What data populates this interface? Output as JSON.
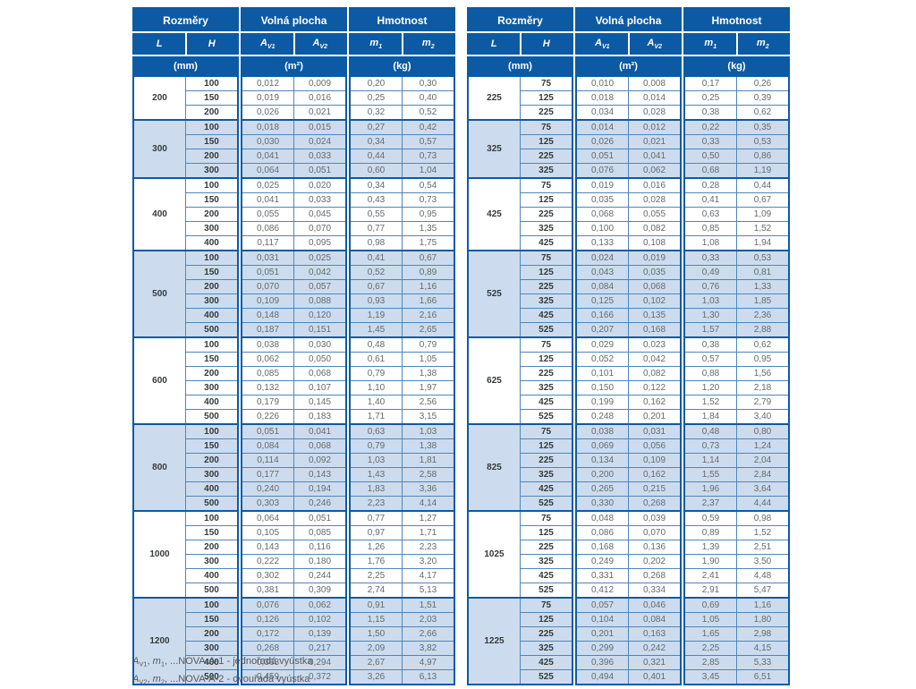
{
  "colors": {
    "header_blue": "#0d5aa4",
    "shaded_row_blue": "#ccdcee",
    "row_line_blue": "#4e86bb",
    "value_text_gray": "#66696c",
    "bold_text_dark": "#36393c"
  },
  "header": {
    "groups": [
      {
        "title": "Rozměry",
        "unit": "(mm)",
        "cols": [
          {
            "base": "L",
            "sub": ""
          },
          {
            "base": "H",
            "sub": ""
          }
        ]
      },
      {
        "title": "Volná plocha",
        "unit": "(m²)",
        "cols": [
          {
            "base": "A",
            "sub": "V1"
          },
          {
            "base": "A",
            "sub": "V2"
          }
        ]
      },
      {
        "title": "Hmotnost",
        "unit": "(kg)",
        "cols": [
          {
            "base": "m",
            "sub": "1"
          },
          {
            "base": "m",
            "sub": "2"
          }
        ]
      }
    ]
  },
  "tables": [
    {
      "name": "left",
      "groups": [
        {
          "L": "200",
          "rows": [
            [
              "100",
              "0,012",
              "0,009",
              "0,20",
              "0,30"
            ],
            [
              "150",
              "0,019",
              "0,016",
              "0,25",
              "0,40"
            ],
            [
              "200",
              "0,026",
              "0,021",
              "0,32",
              "0,52"
            ]
          ]
        },
        {
          "L": "300",
          "rows": [
            [
              "100",
              "0,018",
              "0,015",
              "0,27",
              "0,42"
            ],
            [
              "150",
              "0,030",
              "0,024",
              "0,34",
              "0,57"
            ],
            [
              "200",
              "0,041",
              "0,033",
              "0,44",
              "0,73"
            ],
            [
              "300",
              "0,064",
              "0,051",
              "0,60",
              "1,04"
            ]
          ]
        },
        {
          "L": "400",
          "rows": [
            [
              "100",
              "0,025",
              "0,020",
              "0,34",
              "0,54"
            ],
            [
              "150",
              "0,041",
              "0,033",
              "0,43",
              "0,73"
            ],
            [
              "200",
              "0,055",
              "0,045",
              "0,55",
              "0,95"
            ],
            [
              "300",
              "0,086",
              "0,070",
              "0,77",
              "1,35"
            ],
            [
              "400",
              "0,117",
              "0,095",
              "0,98",
              "1,75"
            ]
          ]
        },
        {
          "L": "500",
          "rows": [
            [
              "100",
              "0,031",
              "0,025",
              "0,41",
              "0,67"
            ],
            [
              "150",
              "0,051",
              "0,042",
              "0,52",
              "0,89"
            ],
            [
              "200",
              "0,070",
              "0,057",
              "0,67",
              "1,16"
            ],
            [
              "300",
              "0,109",
              "0,088",
              "0,93",
              "1,66"
            ],
            [
              "400",
              "0,148",
              "0,120",
              "1,19",
              "2,16"
            ],
            [
              "500",
              "0,187",
              "0,151",
              "1,45",
              "2,65"
            ]
          ]
        },
        {
          "L": "600",
          "rows": [
            [
              "100",
              "0,038",
              "0,030",
              "0,48",
              "0,79"
            ],
            [
              "150",
              "0,062",
              "0,050",
              "0,61",
              "1,05"
            ],
            [
              "200",
              "0,085",
              "0,068",
              "0,79",
              "1,38"
            ],
            [
              "300",
              "0,132",
              "0,107",
              "1,10",
              "1,97"
            ],
            [
              "400",
              "0,179",
              "0,145",
              "1,40",
              "2,56"
            ],
            [
              "500",
              "0,226",
              "0,183",
              "1,71",
              "3,15"
            ]
          ]
        },
        {
          "L": "800",
          "rows": [
            [
              "100",
              "0,051",
              "0,041",
              "0,63",
              "1,03"
            ],
            [
              "150",
              "0,084",
              "0,068",
              "0,79",
              "1,38"
            ],
            [
              "200",
              "0,114",
              "0,092",
              "1,03",
              "1,81"
            ],
            [
              "300",
              "0,177",
              "0,143",
              "1,43",
              "2,58"
            ],
            [
              "400",
              "0,240",
              "0,194",
              "1,83",
              "3,36"
            ],
            [
              "500",
              "0,303",
              "0,246",
              "2,23",
              "4,14"
            ]
          ]
        },
        {
          "L": "1000",
          "rows": [
            [
              "100",
              "0,064",
              "0,051",
              "0,77",
              "1,27"
            ],
            [
              "150",
              "0,105",
              "0,085",
              "0,97",
              "1,71"
            ],
            [
              "200",
              "0,143",
              "0,116",
              "1,26",
              "2,23"
            ],
            [
              "300",
              "0,222",
              "0,180",
              "1,76",
              "3,20"
            ],
            [
              "400",
              "0,302",
              "0,244",
              "2,25",
              "4,17"
            ],
            [
              "500",
              "0,381",
              "0,309",
              "2,74",
              "5,13"
            ]
          ]
        },
        {
          "L": "1200",
          "rows": [
            [
              "100",
              "0,076",
              "0,062",
              "0,91",
              "1,51"
            ],
            [
              "150",
              "0,126",
              "0,102",
              "1,15",
              "2,03"
            ],
            [
              "200",
              "0,172",
              "0,139",
              "1,50",
              "2,66"
            ],
            [
              "300",
              "0,268",
              "0,217",
              "2,09",
              "3,82"
            ],
            [
              "400",
              "0,363",
              "0,294",
              "2,67",
              "4,97"
            ],
            [
              "500",
              "0,459",
              "0,372",
              "3,26",
              "6,13"
            ]
          ]
        }
      ]
    },
    {
      "name": "right",
      "groups": [
        {
          "L": "225",
          "rows": [
            [
              "75",
              "0,010",
              "0,008",
              "0,17",
              "0,26"
            ],
            [
              "125",
              "0,018",
              "0,014",
              "0,25",
              "0,39"
            ],
            [
              "225",
              "0,034",
              "0,028",
              "0,38",
              "0,62"
            ]
          ]
        },
        {
          "L": "325",
          "rows": [
            [
              "75",
              "0,014",
              "0,012",
              "0,22",
              "0,35"
            ],
            [
              "125",
              "0,026",
              "0,021",
              "0,33",
              "0,53"
            ],
            [
              "225",
              "0,051",
              "0,041",
              "0,50",
              "0,86"
            ],
            [
              "325",
              "0,076",
              "0,062",
              "0,68",
              "1,19"
            ]
          ]
        },
        {
          "L": "425",
          "rows": [
            [
              "75",
              "0,019",
              "0,016",
              "0,28",
              "0,44"
            ],
            [
              "125",
              "0,035",
              "0,028",
              "0,41",
              "0,67"
            ],
            [
              "225",
              "0,068",
              "0,055",
              "0,63",
              "1,09"
            ],
            [
              "325",
              "0,100",
              "0,082",
              "0,85",
              "1,52"
            ],
            [
              "425",
              "0,133",
              "0,108",
              "1,08",
              "1,94"
            ]
          ]
        },
        {
          "L": "525",
          "rows": [
            [
              "75",
              "0,024",
              "0,019",
              "0,33",
              "0,53"
            ],
            [
              "125",
              "0,043",
              "0,035",
              "0,49",
              "0,81"
            ],
            [
              "225",
              "0,084",
              "0,068",
              "0,76",
              "1,33"
            ],
            [
              "325",
              "0,125",
              "0,102",
              "1,03",
              "1,85"
            ],
            [
              "425",
              "0,166",
              "0,135",
              "1,30",
              "2,36"
            ],
            [
              "525",
              "0,207",
              "0,168",
              "1,57",
              "2,88"
            ]
          ]
        },
        {
          "L": "625",
          "rows": [
            [
              "75",
              "0,029",
              "0,023",
              "0,38",
              "0,62"
            ],
            [
              "125",
              "0,052",
              "0,042",
              "0,57",
              "0,95"
            ],
            [
              "225",
              "0,101",
              "0,082",
              "0,88",
              "1,56"
            ],
            [
              "325",
              "0,150",
              "0,122",
              "1,20",
              "2,18"
            ],
            [
              "425",
              "0,199",
              "0,162",
              "1,52",
              "2,79"
            ],
            [
              "525",
              "0,248",
              "0,201",
              "1,84",
              "3,40"
            ]
          ]
        },
        {
          "L": "825",
          "rows": [
            [
              "75",
              "0,038",
              "0,031",
              "0,48",
              "0,80"
            ],
            [
              "125",
              "0,069",
              "0,056",
              "0,73",
              "1,24"
            ],
            [
              "225",
              "0,134",
              "0,109",
              "1,14",
              "2,04"
            ],
            [
              "325",
              "0,200",
              "0,162",
              "1,55",
              "2,84"
            ],
            [
              "425",
              "0,265",
              "0,215",
              "1,96",
              "3,64"
            ],
            [
              "525",
              "0,330",
              "0,268",
              "2,37",
              "4,44"
            ]
          ]
        },
        {
          "L": "1025",
          "rows": [
            [
              "75",
              "0,048",
              "0,039",
              "0,59",
              "0,98"
            ],
            [
              "125",
              "0,086",
              "0,070",
              "0,89",
              "1,52"
            ],
            [
              "225",
              "0,168",
              "0,136",
              "1,39",
              "2,51"
            ],
            [
              "325",
              "0,249",
              "0,202",
              "1,90",
              "3,50"
            ],
            [
              "425",
              "0,331",
              "0,268",
              "2,41",
              "4,48"
            ],
            [
              "525",
              "0,412",
              "0,334",
              "2,91",
              "5,47"
            ]
          ]
        },
        {
          "L": "1225",
          "rows": [
            [
              "75",
              "0,057",
              "0,046",
              "0,69",
              "1,16"
            ],
            [
              "125",
              "0,104",
              "0,084",
              "1,05",
              "1,80"
            ],
            [
              "225",
              "0,201",
              "0,163",
              "1,65",
              "2,98"
            ],
            [
              "325",
              "0,299",
              "0,242",
              "2,25",
              "4,15"
            ],
            [
              "425",
              "0,396",
              "0,321",
              "2,85",
              "5,33"
            ],
            [
              "525",
              "0,494",
              "0,401",
              "3,45",
              "6,51"
            ]
          ]
        }
      ]
    }
  ],
  "footnotes": [
    {
      "parts": [
        {
          "t": "A",
          "s": "sym"
        },
        {
          "t": "V1",
          "s": "sub"
        },
        {
          "t": ", ",
          "s": "plain"
        },
        {
          "t": "m",
          "s": "sym"
        },
        {
          "t": "1",
          "s": "sub"
        },
        {
          "t": ", ...NOVA-A-1 - jednořadá vyústka",
          "s": "plain"
        }
      ]
    },
    {
      "parts": [
        {
          "t": "A",
          "s": "sym"
        },
        {
          "t": "V2",
          "s": "sub"
        },
        {
          "t": ", ",
          "s": "plain"
        },
        {
          "t": "m",
          "s": "sym"
        },
        {
          "t": "2",
          "s": "sub"
        },
        {
          "t": ", ...NOVA-A-2 - dvouřadá vyústka",
          "s": "plain"
        }
      ]
    }
  ]
}
